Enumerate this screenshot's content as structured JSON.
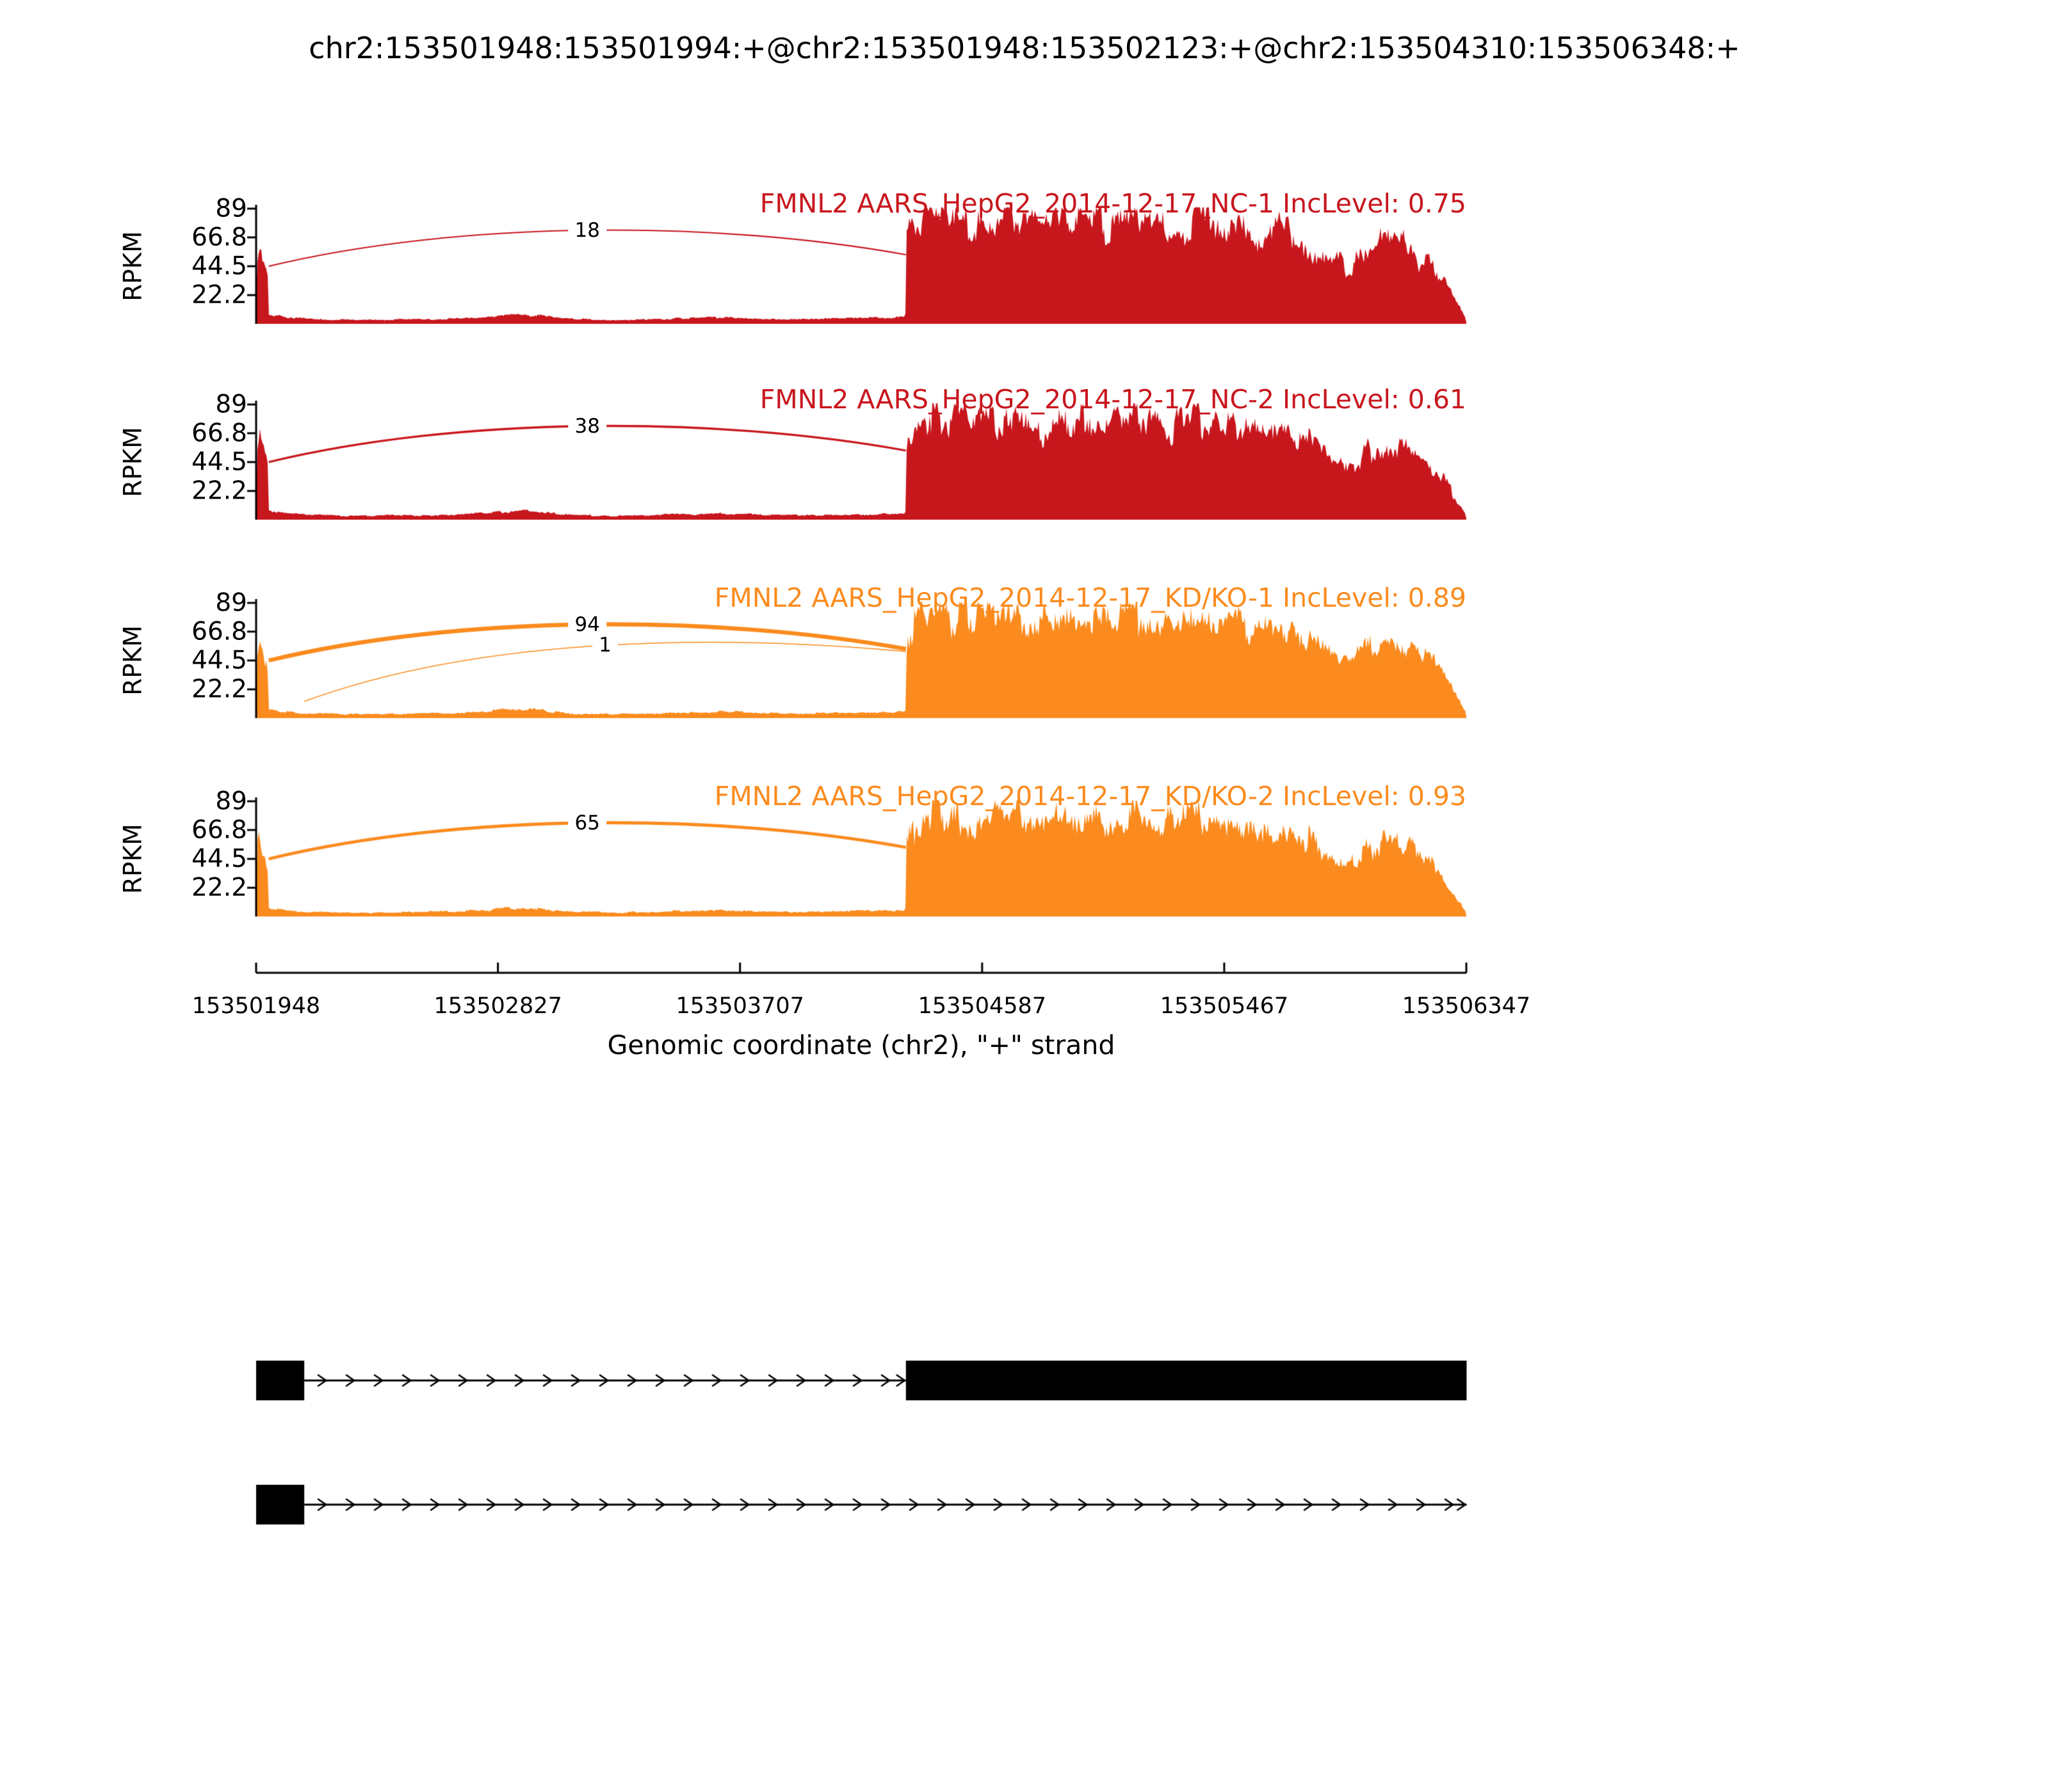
{
  "chart_data": {
    "type": "area",
    "title": "chr2:153501948:153501994:+@chr2:153501948:153502123:+@chr2:153504310:153506348:+",
    "xlabel": "Genomic coordinate (chr2), \"+\" strand",
    "ylabel": "RPKM",
    "x_range": [
      153501948,
      153506347
    ],
    "x_ticks": [
      153501948,
      153502827,
      153503707,
      153504587,
      153505467,
      153506347
    ],
    "y_ticks": [
      89,
      66.8,
      44.5,
      22.2
    ],
    "y_max": 89,
    "legend_position": "none",
    "grid": false,
    "tracks": [
      {
        "label": "FMNL2 AARS_HepG2_2014-12-17_NC-1 IncLevel: 0.75",
        "sample": "NC-1",
        "inc_level": 0.75,
        "color": "#C8161D",
        "seed": 3,
        "scale": 1.0,
        "junctions": [
          {
            "from": 153501994,
            "to": 153504310,
            "count": 18,
            "minor": false
          }
        ]
      },
      {
        "label": "FMNL2 AARS_HepG2_2014-12-17_NC-2 IncLevel: 0.61",
        "sample": "NC-2",
        "inc_level": 0.61,
        "color": "#C8161D",
        "seed": 11,
        "scale": 0.96,
        "junctions": [
          {
            "from": 153501994,
            "to": 153504310,
            "count": 38,
            "minor": false
          }
        ]
      },
      {
        "label": "FMNL2 AARS_HepG2_2014-12-17_KD/KO-1 IncLevel: 0.89",
        "sample": "KD/KO-1",
        "inc_level": 0.89,
        "color": "#FB8B1E",
        "seed": 23,
        "scale": 0.98,
        "junctions": [
          {
            "from": 153501994,
            "to": 153504310,
            "count": 94,
            "minor": false
          },
          {
            "from": 153502123,
            "to": 153504310,
            "count": 1,
            "minor": true
          }
        ]
      },
      {
        "label": "FMNL2 AARS_HepG2_2014-12-17_KD/KO-2 IncLevel: 0.93",
        "sample": "KD/KO-2",
        "inc_level": 0.93,
        "color": "#FB8B1E",
        "seed": 31,
        "scale": 0.96,
        "junctions": [
          {
            "from": 153501994,
            "to": 153504310,
            "count": 65,
            "minor": false
          }
        ]
      }
    ],
    "coverage_points": [
      [
        153501948,
        18
      ],
      [
        153501951,
        52
      ],
      [
        153501958,
        62
      ],
      [
        153501968,
        55
      ],
      [
        153501980,
        45
      ],
      [
        153501992,
        38
      ],
      [
        153501994,
        7
      ],
      [
        153502050,
        5
      ],
      [
        153502123,
        4
      ],
      [
        153502300,
        3
      ],
      [
        153502520,
        3.5
      ],
      [
        153502700,
        4
      ],
      [
        153502860,
        6.5
      ],
      [
        153502960,
        7
      ],
      [
        153503060,
        4
      ],
      [
        153503250,
        3
      ],
      [
        153503450,
        4
      ],
      [
        153503650,
        5
      ],
      [
        153503850,
        3.5
      ],
      [
        153504050,
        4
      ],
      [
        153504200,
        4.5
      ],
      [
        153504308,
        5
      ],
      [
        153504312,
        66
      ],
      [
        153504350,
        78
      ],
      [
        153504420,
        86
      ],
      [
        153504470,
        76
      ],
      [
        153504530,
        83
      ],
      [
        153504600,
        77
      ],
      [
        153504660,
        86
      ],
      [
        153504720,
        79
      ],
      [
        153504800,
        73
      ],
      [
        153504880,
        82
      ],
      [
        153504960,
        85
      ],
      [
        153505040,
        74
      ],
      [
        153505120,
        79
      ],
      [
        153505200,
        83
      ],
      [
        153505280,
        73
      ],
      [
        153505360,
        80
      ],
      [
        153505440,
        84
      ],
      [
        153505520,
        72
      ],
      [
        153505600,
        68
      ],
      [
        153505680,
        74
      ],
      [
        153505760,
        64
      ],
      [
        153505840,
        50
      ],
      [
        153505910,
        43
      ],
      [
        153505990,
        56
      ],
      [
        153506060,
        63
      ],
      [
        153506140,
        58
      ],
      [
        153506220,
        44
      ],
      [
        153506280,
        28
      ],
      [
        153506320,
        14
      ],
      [
        153506344,
        5
      ],
      [
        153506348,
        0
      ]
    ],
    "isoforms": [
      {
        "exons": [
          [
            153501948,
            153502123
          ],
          [
            153504310,
            153506348
          ]
        ]
      },
      {
        "exons": [
          [
            153501948,
            153502123
          ]
        ],
        "line_end": 153506348
      }
    ]
  }
}
